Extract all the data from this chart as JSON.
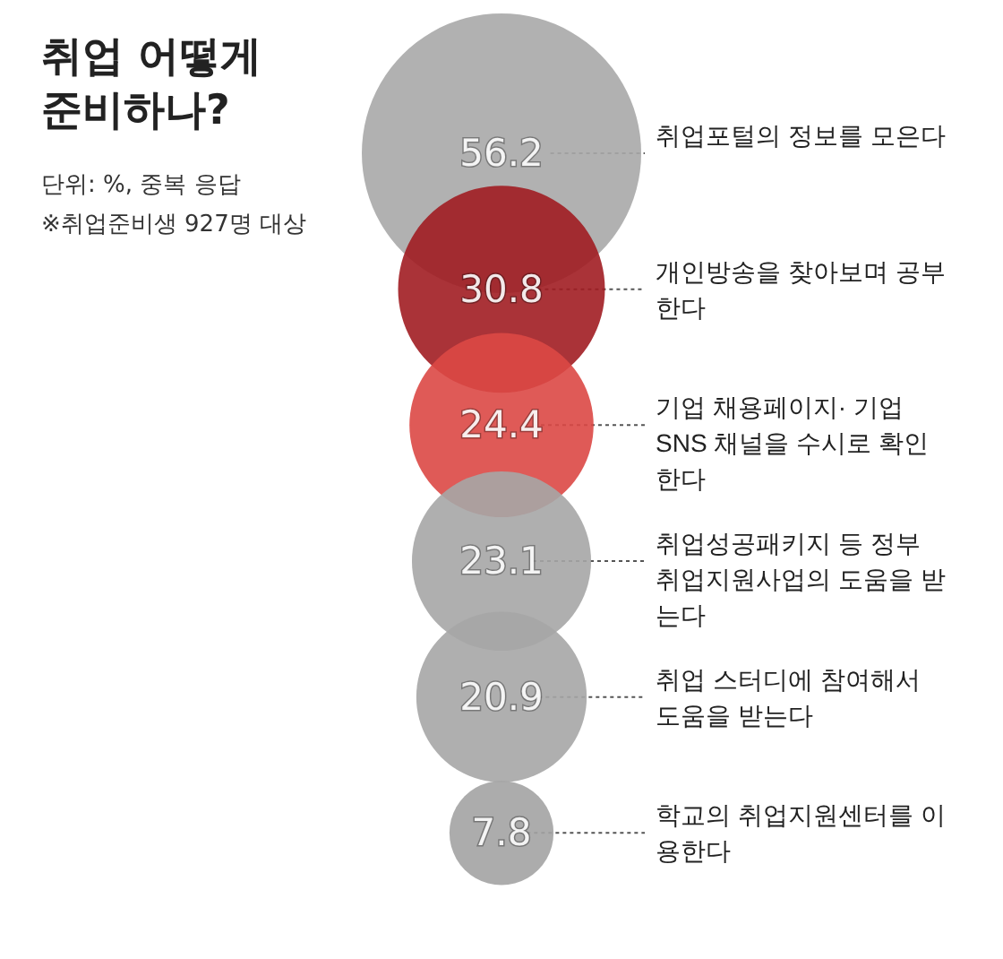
{
  "chart_data": {
    "type": "other",
    "title": "취업 어떻게 준비하나?",
    "subtitle": "단위: %, 중복 응답",
    "annotations": [
      "※취업준비생 927명 대상"
    ],
    "categories": [
      "취업포털의 정보를 모은다",
      "개인방송을 찾아보며 공부한다",
      "기업 채용페이지· 기업 SNS 채널을 수시로 확인한다",
      "취업성공패키지 등 정부 취업지원사업의 도움을 받는다",
      "취업 스터디에 참여해서 도움을 받는다",
      "학교의 취업지원센터를 이용한다"
    ],
    "values": [
      56.2,
      30.8,
      24.4,
      23.1,
      20.9,
      7.8
    ],
    "colors": [
      "#a8a8a8",
      "#a11d22",
      "#dc4845",
      "#a6a6a6",
      "#a6a6a6",
      "#a3a3a3"
    ],
    "data_labels": true
  }
}
